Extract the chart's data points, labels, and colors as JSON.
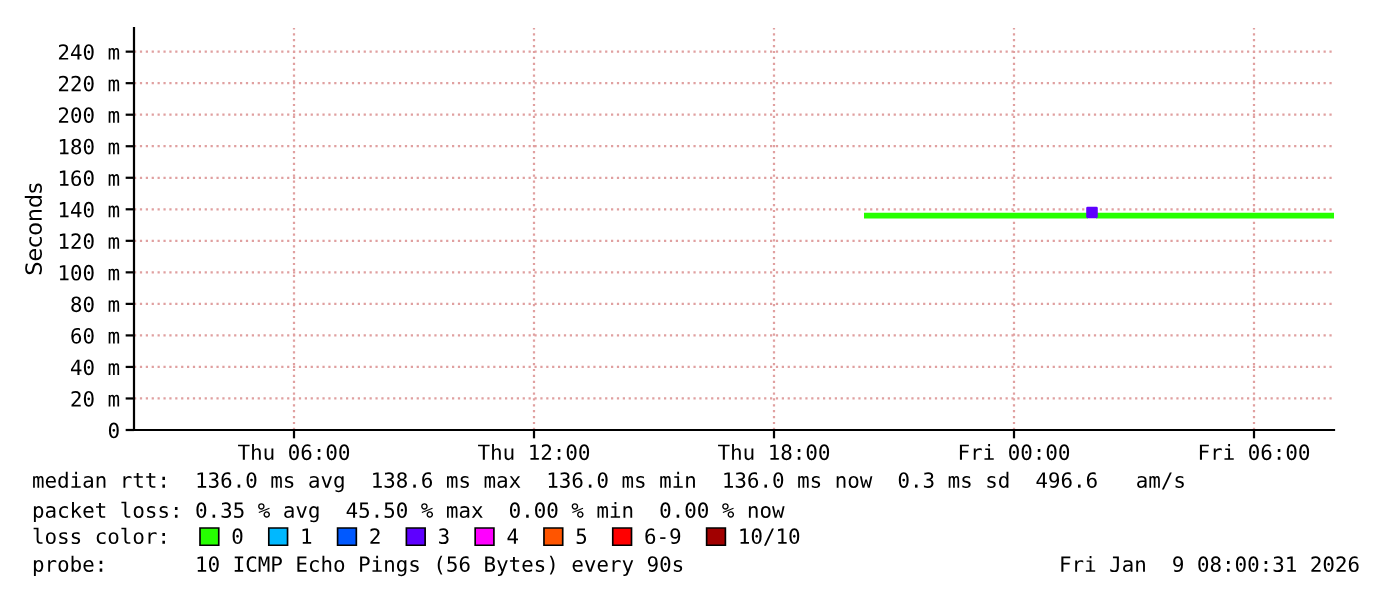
{
  "chart_data": {
    "type": "line",
    "ylabel": "Seconds",
    "legend_title": "loss color:",
    "legend": "bottom",
    "xlim": [
      "2026-01-08T02:00",
      "2026-01-09T08:00"
    ],
    "xticks": [
      {
        "value": "2026-01-08T06:00",
        "label": "Thu 06:00"
      },
      {
        "value": "2026-01-08T12:00",
        "label": "Thu 12:00"
      },
      {
        "value": "2026-01-08T18:00",
        "label": "Thu 18:00"
      },
      {
        "value": "2026-01-09T00:00",
        "label": "Fri 00:00"
      },
      {
        "value": "2026-01-09T06:00",
        "label": "Fri 06:00"
      }
    ],
    "ylim": [
      0,
      255
    ],
    "yticks": [
      0,
      {
        "value": 20,
        "label": "20 m"
      },
      {
        "value": 40,
        "label": "40 m"
      },
      {
        "value": 60,
        "label": "60 m"
      },
      {
        "value": 80,
        "label": "80 m"
      },
      {
        "value": 100,
        "label": "100 m"
      },
      {
        "value": 120,
        "label": "120 m"
      },
      {
        "value": 140,
        "label": "140 m"
      },
      {
        "value": 160,
        "label": "160 m"
      },
      {
        "value": 180,
        "label": "180 m"
      },
      {
        "value": 200,
        "label": "200 m"
      },
      {
        "value": 220,
        "label": "220 m"
      },
      {
        "value": 240,
        "label": "240 m"
      }
    ],
    "grid": true,
    "series": [
      {
        "name": "0",
        "color": "#26ff00",
        "x": [
          "2026-01-08T20:15",
          "2026-01-09T01:51",
          "2026-01-09T01:57",
          "2026-01-09T02:03",
          "2026-01-09T08:00"
        ],
        "values": [
          136,
          136,
          null,
          136,
          136
        ]
      },
      {
        "name": "1",
        "color": "#00b8ff"
      },
      {
        "name": "2",
        "color": "#0059ff"
      },
      {
        "name": "3",
        "color": "#5e00ff",
        "type": "scatter",
        "marker": "square",
        "x": [
          "2026-01-09T01:57"
        ],
        "values": [
          138
        ]
      },
      {
        "name": "4",
        "color": "#ff00ff"
      },
      {
        "name": "5",
        "color": "#ff5500"
      },
      {
        "name": "6-9",
        "color": "#ff0000"
      },
      {
        "name": "10/10",
        "color": "#a10000"
      }
    ],
    "annotations": [
      "median rtt:  136.0 ms avg  138.6 ms max  136.0 ms min  136.0 ms now  0.3 ms sd  496.6   am/s",
      "packet loss: 0.35 % avg  45.50 % max  0.00 % min  0.00 % now",
      "probe:       10 ICMP Echo Pings (56 Bytes) every 90s",
      "Fri Jan  9 08:00:31 2026"
    ]
  }
}
